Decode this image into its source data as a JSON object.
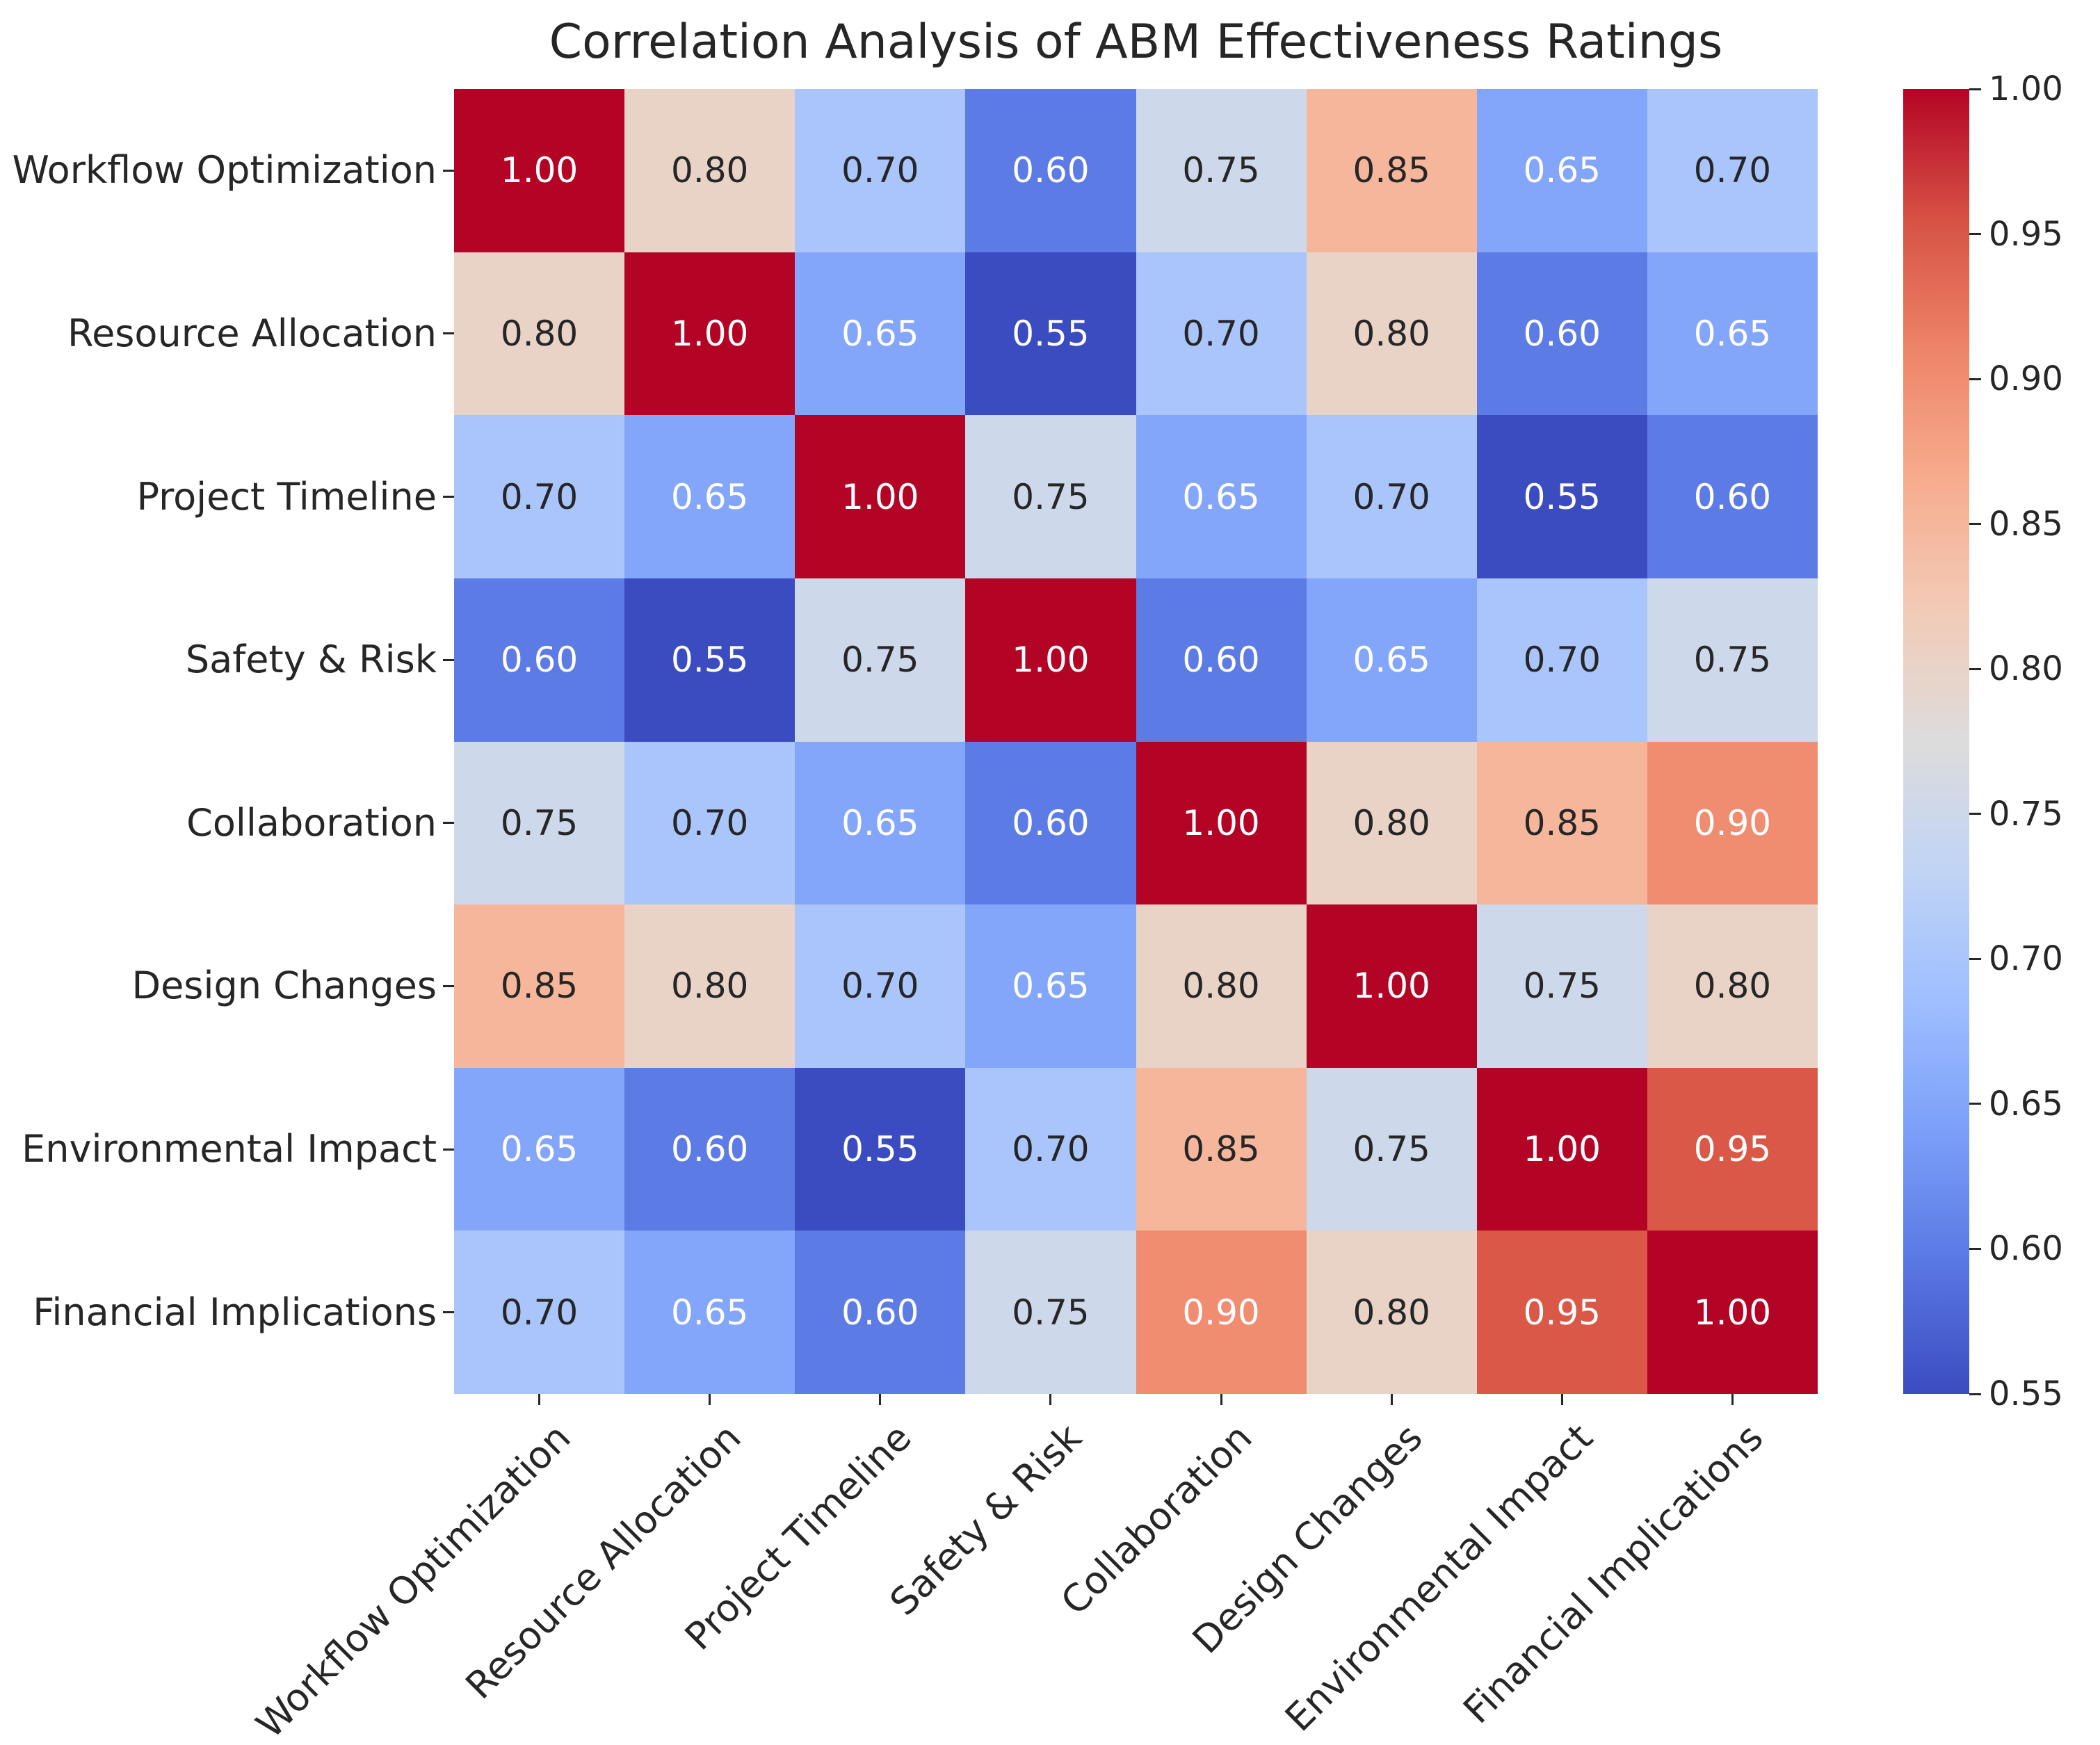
{
  "title": "Correlation Analysis of ABM Effectiveness Ratings",
  "chart_data": {
    "type": "heatmap",
    "title": "Correlation Analysis of ABM Effectiveness Ratings",
    "categories": [
      "Workflow Optimization",
      "Resource Allocation",
      "Project Timeline",
      "Safety & Risk",
      "Collaboration",
      "Design Changes",
      "Environmental Impact",
      "Financial Implications"
    ],
    "matrix": [
      [
        1.0,
        0.8,
        0.7,
        0.6,
        0.75,
        0.85,
        0.65,
        0.7
      ],
      [
        0.8,
        1.0,
        0.65,
        0.55,
        0.7,
        0.8,
        0.6,
        0.65
      ],
      [
        0.7,
        0.65,
        1.0,
        0.75,
        0.65,
        0.7,
        0.55,
        0.6
      ],
      [
        0.6,
        0.55,
        0.75,
        1.0,
        0.6,
        0.65,
        0.7,
        0.75
      ],
      [
        0.75,
        0.7,
        0.65,
        0.6,
        1.0,
        0.8,
        0.85,
        0.9
      ],
      [
        0.85,
        0.8,
        0.7,
        0.65,
        0.8,
        1.0,
        0.75,
        0.8
      ],
      [
        0.65,
        0.6,
        0.55,
        0.7,
        0.85,
        0.75,
        1.0,
        0.95
      ],
      [
        0.7,
        0.65,
        0.6,
        0.75,
        0.9,
        0.8,
        0.95,
        1.0
      ]
    ],
    "value_decimals": 2,
    "vmin": 0.55,
    "vmax": 1.0,
    "colormap": "coolwarm",
    "grid": false,
    "legend_position": "right-colorbar",
    "colorbar_ticks": [
      1.0,
      0.95,
      0.9,
      0.85,
      0.8,
      0.75,
      0.7,
      0.65,
      0.6,
      0.55
    ],
    "colormap_stops": [
      {
        "t": 0.0,
        "color": "#3b4cc0"
      },
      {
        "t": 0.1,
        "color": "#5977e3"
      },
      {
        "t": 0.2,
        "color": "#7b9ff9"
      },
      {
        "t": 0.3,
        "color": "#9ebeff"
      },
      {
        "t": 0.4,
        "color": "#c0d4f5"
      },
      {
        "t": 0.5,
        "color": "#dddcdc"
      },
      {
        "t": 0.6,
        "color": "#f2cbb7"
      },
      {
        "t": 0.7,
        "color": "#f7ac8e"
      },
      {
        "t": 0.8,
        "color": "#ee8468"
      },
      {
        "t": 0.9,
        "color": "#d65244"
      },
      {
        "t": 1.0,
        "color": "#b40426"
      }
    ],
    "annotation_colors": {
      "light": "#ffffff",
      "dark": "#262626"
    }
  }
}
